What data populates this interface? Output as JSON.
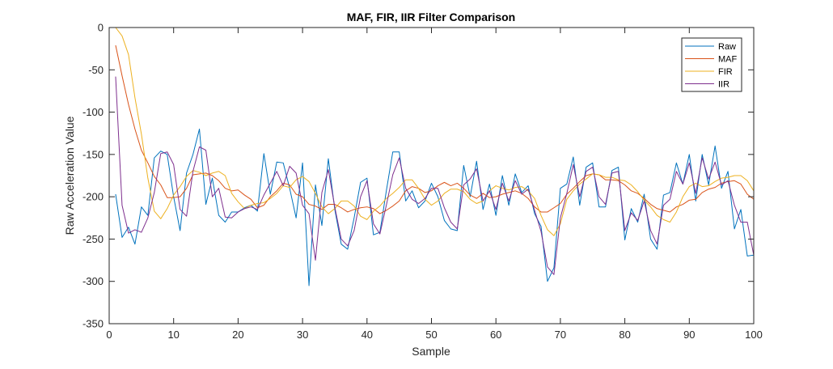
{
  "chart_data": {
    "type": "line",
    "title": "MAF, FIR, IIR Filter Comparison",
    "xlabel": "Sample",
    "ylabel": "Raw Acceleration Value",
    "xlim": [
      0,
      100
    ],
    "ylim": [
      -350,
      0
    ],
    "xticks": [
      0,
      10,
      20,
      30,
      40,
      50,
      60,
      70,
      80,
      90,
      100
    ],
    "yticks": [
      0,
      -50,
      -100,
      -150,
      -200,
      -250,
      -300,
      -350
    ],
    "grid": false,
    "legend_position": "top-right",
    "x": [
      1,
      2,
      3,
      4,
      5,
      6,
      7,
      8,
      9,
      10,
      11,
      12,
      13,
      14,
      15,
      16,
      17,
      18,
      19,
      20,
      21,
      22,
      23,
      24,
      25,
      26,
      27,
      28,
      29,
      30,
      31,
      32,
      33,
      34,
      35,
      36,
      37,
      38,
      39,
      40,
      41,
      42,
      43,
      44,
      45,
      46,
      47,
      48,
      49,
      50,
      51,
      52,
      53,
      54,
      55,
      56,
      57,
      58,
      59,
      60,
      61,
      62,
      63,
      64,
      65,
      66,
      67,
      68,
      69,
      70,
      71,
      72,
      73,
      74,
      75,
      76,
      77,
      78,
      79,
      80,
      81,
      82,
      83,
      84,
      85,
      86,
      87,
      88,
      89,
      90,
      91,
      92,
      93,
      94,
      95,
      96,
      97,
      98,
      99,
      100
    ],
    "series": [
      {
        "name": "Raw",
        "color": "#0072BD",
        "values": [
          -197,
          -248,
          -236,
          -256,
          -212,
          -222,
          -154,
          -146,
          -150,
          -200,
          -240,
          -172,
          -150,
          -120,
          -209,
          -178,
          -222,
          -230,
          -218,
          -218,
          -213,
          -210,
          -217,
          -149,
          -197,
          -159,
          -160,
          -190,
          -225,
          -160,
          -305,
          -186,
          -234,
          -155,
          -215,
          -256,
          -262,
          -225,
          -183,
          -178,
          -245,
          -242,
          -193,
          -147,
          -147,
          -205,
          -193,
          -213,
          -205,
          -184,
          -200,
          -228,
          -238,
          -240,
          -163,
          -200,
          -158,
          -215,
          -185,
          -222,
          -175,
          -210,
          -173,
          -195,
          -187,
          -220,
          -235,
          -300,
          -284,
          -190,
          -185,
          -153,
          -210,
          -165,
          -160,
          -212,
          -212,
          -169,
          -165,
          -251,
          -214,
          -230,
          -197,
          -250,
          -262,
          -198,
          -195,
          -160,
          -185,
          -150,
          -205,
          -150,
          -186,
          -140,
          -190,
          -170,
          -238,
          -215,
          -270,
          -269
        ]
      },
      {
        "name": "MAF",
        "color": "#D95319",
        "values": [
          -21,
          -57,
          -91,
          -120,
          -145,
          -160,
          -176,
          -186,
          -201,
          -201,
          -200,
          -190,
          -174,
          -173,
          -172,
          -175,
          -181,
          -190,
          -193,
          -192,
          -198,
          -203,
          -213,
          -210,
          -200,
          -193,
          -184,
          -186,
          -197,
          -200,
          -209,
          -211,
          -215,
          -209,
          -209,
          -213,
          -218,
          -215,
          -213,
          -212,
          -214,
          -220,
          -216,
          -211,
          -205,
          -193,
          -188,
          -190,
          -195,
          -193,
          -187,
          -183,
          -187,
          -184,
          -190,
          -198,
          -202,
          -196,
          -201,
          -200,
          -197,
          -195,
          -193,
          -196,
          -202,
          -212,
          -218,
          -218,
          -213,
          -208,
          -197,
          -190,
          -182,
          -175,
          -173,
          -174,
          -180,
          -180,
          -181,
          -186,
          -193,
          -196,
          -202,
          -209,
          -214,
          -216,
          -218,
          -212,
          -209,
          -204,
          -203,
          -195,
          -191,
          -189,
          -184,
          -182,
          -181,
          -185,
          -197,
          -203
        ]
      },
      {
        "name": "FIR",
        "color": "#EDB120",
        "values": [
          0,
          -10,
          -32,
          -83,
          -126,
          -178,
          -217,
          -226,
          -214,
          -198,
          -188,
          -176,
          -169,
          -171,
          -175,
          -172,
          -170,
          -175,
          -196,
          -206,
          -214,
          -210,
          -208,
          -207,
          -202,
          -196,
          -187,
          -189,
          -180,
          -176,
          -182,
          -196,
          -212,
          -220,
          -214,
          -205,
          -205,
          -211,
          -223,
          -227,
          -217,
          -211,
          -202,
          -196,
          -189,
          -180,
          -180,
          -190,
          -203,
          -210,
          -205,
          -196,
          -191,
          -191,
          -194,
          -203,
          -208,
          -205,
          -193,
          -187,
          -190,
          -192,
          -189,
          -188,
          -193,
          -202,
          -222,
          -239,
          -246,
          -232,
          -203,
          -193,
          -185,
          -179,
          -173,
          -174,
          -177,
          -177,
          -180,
          -181,
          -186,
          -194,
          -204,
          -212,
          -222,
          -227,
          -230,
          -218,
          -200,
          -188,
          -184,
          -188,
          -187,
          -182,
          -178,
          -177,
          -175,
          -175,
          -181,
          -193
        ]
      },
      {
        "name": "IIR",
        "color": "#7E2F8E",
        "values": [
          -58,
          -210,
          -243,
          -239,
          -242,
          -225,
          -195,
          -149,
          -147,
          -162,
          -215,
          -223,
          -170,
          -141,
          -145,
          -200,
          -190,
          -224,
          -225,
          -218,
          -214,
          -212,
          -215,
          -198,
          -184,
          -170,
          -187,
          -164,
          -172,
          -210,
          -220,
          -275,
          -195,
          -168,
          -212,
          -250,
          -258,
          -240,
          -200,
          -181,
          -232,
          -244,
          -210,
          -174,
          -154,
          -190,
          -203,
          -208,
          -202,
          -190,
          -190,
          -213,
          -230,
          -238,
          -186,
          -179,
          -167,
          -205,
          -193,
          -215,
          -184,
          -205,
          -181,
          -197,
          -191,
          -216,
          -241,
          -283,
          -292,
          -225,
          -196,
          -162,
          -200,
          -170,
          -165,
          -200,
          -209,
          -172,
          -170,
          -240,
          -219,
          -228,
          -205,
          -240,
          -256,
          -210,
          -203,
          -170,
          -185,
          -160,
          -196,
          -154,
          -179,
          -159,
          -186,
          -181,
          -210,
          -230,
          -230,
          -269
        ]
      }
    ]
  }
}
